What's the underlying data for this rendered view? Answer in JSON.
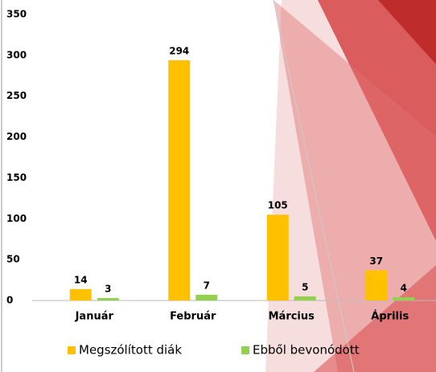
{
  "chart_data": {
    "type": "bar",
    "categories": [
      "Január",
      "Február",
      "Március",
      "Április"
    ],
    "series": [
      {
        "name": "Megszólított diák",
        "color": "#ffc000",
        "values": [
          14,
          294,
          105,
          37
        ]
      },
      {
        "name": "Ebből bevonódott",
        "color": "#92d050",
        "values": [
          3,
          7,
          5,
          4
        ]
      }
    ],
    "ylim": [
      0,
      350
    ],
    "yticks": [
      0,
      50,
      100,
      150,
      200,
      250,
      300,
      350
    ],
    "grid": false,
    "legend": "bottom"
  }
}
